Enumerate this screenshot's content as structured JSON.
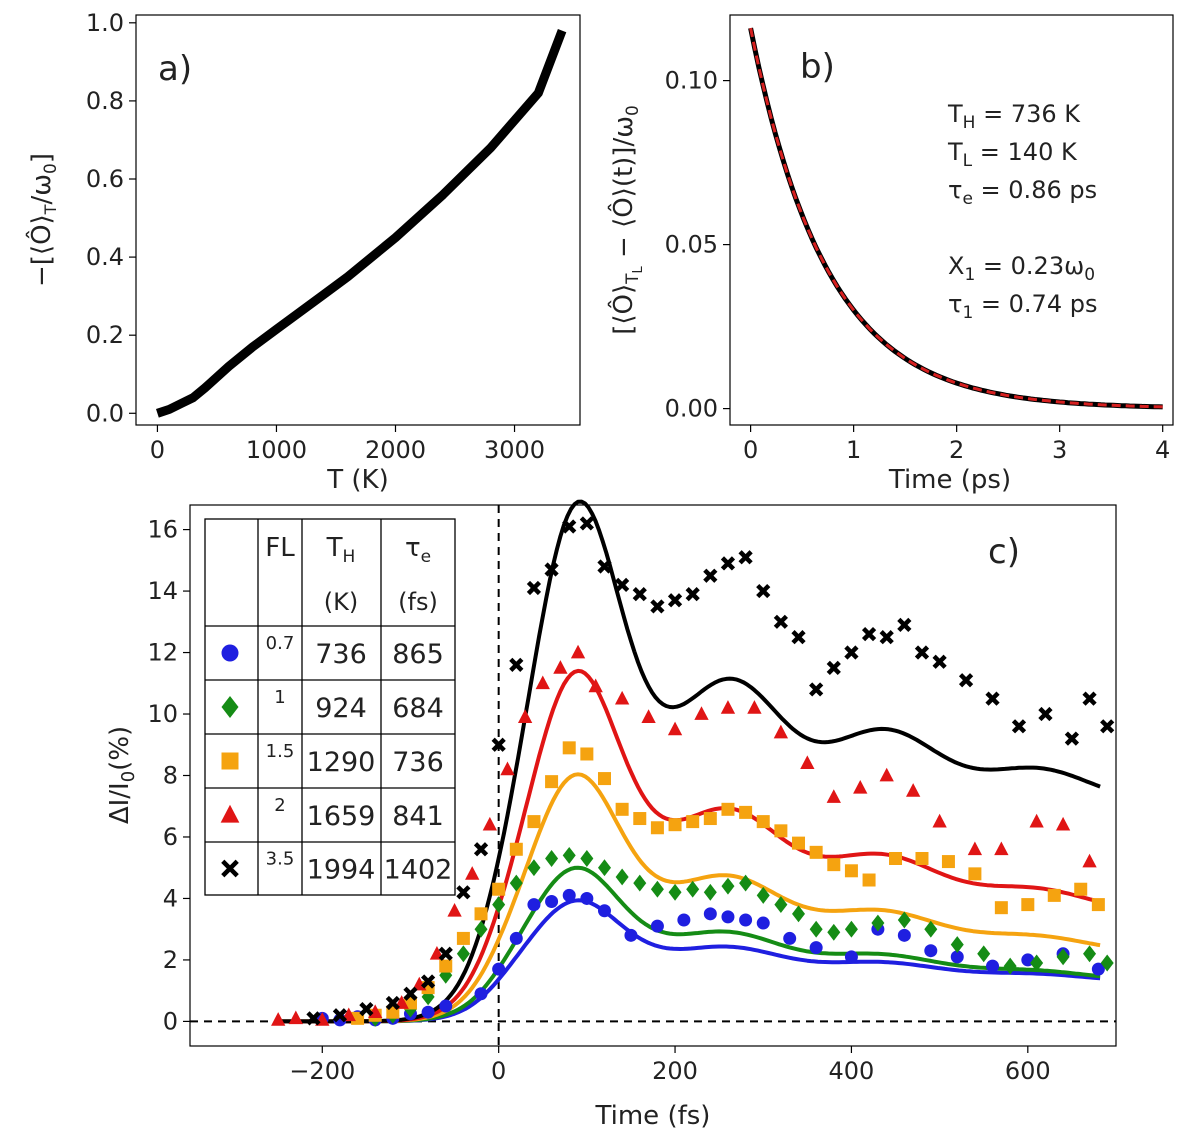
{
  "chart_data": [
    {
      "panel": "a",
      "type": "line",
      "panel_label": "a)",
      "xlabel": "T (K)",
      "ylabel": "−[⟨Ô⟩T/ω0]",
      "ylabel_main": "−[⟨Ô⟩",
      "ylabel_sub": "T",
      "ylabel_tail": "/ω",
      "ylabel_sub2": "0",
      "ylabel_end": "]",
      "xlim": [
        -180,
        3550
      ],
      "ylim": [
        -0.03,
        1.02
      ],
      "xticks": [
        0,
        1000,
        2000,
        3000
      ],
      "xtick_labels": [
        "0",
        "1000",
        "2000",
        "3000"
      ],
      "yticks": [
        0.0,
        0.2,
        0.4,
        0.6,
        0.8,
        1.0
      ],
      "ytick_labels": [
        "0.0",
        "0.2",
        "0.4",
        "0.6",
        "0.8",
        "1.0"
      ],
      "series": [
        {
          "name": "curve",
          "color": "#000000",
          "x": [
            0,
            100,
            200,
            300,
            400,
            600,
            800,
            1000,
            1200,
            1400,
            1600,
            1800,
            2000,
            2200,
            2400,
            2600,
            2800,
            3000,
            3200,
            3400
          ],
          "y": [
            0.0,
            0.01,
            0.025,
            0.04,
            0.065,
            0.12,
            0.17,
            0.215,
            0.26,
            0.305,
            0.35,
            0.4,
            0.45,
            0.505,
            0.56,
            0.62,
            0.68,
            0.75,
            0.82,
            0.98
          ]
        }
      ]
    },
    {
      "panel": "b",
      "type": "line",
      "panel_label": "b)",
      "xlabel": "Time (ps)",
      "ylabel": "[⟨Ô⟩TL − ⟨Ô⟩(t)]/ω0",
      "ylabel_a": "[⟨Ô⟩",
      "ylabel_sub": "T",
      "ylabel_subsub": "L",
      "ylabel_b": " − ⟨Ô⟩(t)]/ω",
      "ylabel_sub2": "0",
      "xlim": [
        -0.2,
        4.1
      ],
      "ylim": [
        -0.005,
        0.12
      ],
      "xticks": [
        0,
        1,
        2,
        3,
        4
      ],
      "xtick_labels": [
        "0",
        "1",
        "2",
        "3",
        "4"
      ],
      "yticks": [
        0.0,
        0.05,
        0.1
      ],
      "ytick_labels": [
        "0.00",
        "0.05",
        "0.10"
      ],
      "decay": {
        "amplitude": 0.116,
        "tau_ps": 0.74
      },
      "series": [
        {
          "name": "simulation",
          "color": "#000000",
          "style": "solid"
        },
        {
          "name": "fit",
          "color": "#d62020",
          "style": "dashed"
        }
      ],
      "annotations": [
        {
          "main": "T",
          "sub": "H",
          "rest": " = 736 K"
        },
        {
          "main": "T",
          "sub": "L",
          "rest": " = 140 K"
        },
        {
          "main": "τ",
          "sub": "e",
          "rest": " = 0.86 ps"
        },
        {
          "main": "X",
          "sub": "1",
          "rest": " = 0.23ω",
          "sub2": "0"
        },
        {
          "main": "τ",
          "sub": "1",
          "rest": " = 0.74 ps"
        }
      ]
    },
    {
      "panel": "c",
      "type": "scatter",
      "panel_label": "c)",
      "xlabel": "Time (fs)",
      "ylabel": "ΔI/I0(%)",
      "ylabel_a": "ΔI/I",
      "ylabel_sub": "0",
      "ylabel_b": "(%)",
      "xlim": [
        -350,
        700
      ],
      "ylim": [
        -0.8,
        16.8
      ],
      "xticks": [
        -200,
        0,
        200,
        400,
        600
      ],
      "xtick_labels": [
        "−200",
        "0",
        "200",
        "400",
        "600"
      ],
      "yticks": [
        0,
        2,
        4,
        6,
        8,
        10,
        12,
        14,
        16
      ],
      "ytick_labels": [
        "0",
        "2",
        "4",
        "6",
        "8",
        "10",
        "12",
        "14",
        "16"
      ],
      "reference_lines": [
        {
          "axis": "y",
          "value": 0,
          "style": "dashed"
        },
        {
          "axis": "x",
          "value": 0,
          "style": "dashed"
        }
      ],
      "legend_table": {
        "headers": [
          {
            "main": "FL",
            "sub": "",
            "unit": ""
          },
          {
            "main": "T",
            "sub": "H",
            "unit": "(K)"
          },
          {
            "main": "τ",
            "sub": "e",
            "unit": "(fs)"
          }
        ],
        "rows": [
          {
            "fl": "0.7",
            "th": "736",
            "te": "865"
          },
          {
            "fl": "1",
            "th": "924",
            "te": "684"
          },
          {
            "fl": "1.5",
            "th": "1290",
            "te": "736"
          },
          {
            "fl": "2",
            "th": "1659",
            "te": "841"
          },
          {
            "fl": "3.5",
            "th": "1994",
            "te": "1402"
          }
        ]
      },
      "series": [
        {
          "name": "FL 0.7",
          "marker": "circle",
          "color": "#1f1fe0",
          "fit": {
            "amplitude": 3.1,
            "tau_fs": 865,
            "osc": 0.45
          },
          "x": [
            -200,
            -180,
            -160,
            -140,
            -120,
            -100,
            -80,
            -60,
            -20,
            0,
            20,
            40,
            60,
            80,
            100,
            120,
            150,
            180,
            210,
            240,
            260,
            280,
            300,
            330,
            360,
            400,
            430,
            460,
            490,
            520,
            560,
            600,
            640,
            680
          ],
          "y": [
            0.1,
            0.05,
            0.15,
            0.05,
            0.1,
            0.25,
            0.3,
            0.5,
            0.9,
            1.7,
            2.7,
            3.8,
            3.9,
            4.1,
            4.0,
            3.6,
            2.8,
            3.1,
            3.3,
            3.5,
            3.4,
            3.3,
            3.2,
            2.7,
            2.4,
            2.1,
            3.0,
            2.8,
            2.3,
            2.1,
            1.8,
            2.0,
            2.2,
            1.7
          ]
        },
        {
          "name": "FL 1",
          "marker": "diamond",
          "color": "#158c15",
          "fit": {
            "amplitude": 4.0,
            "tau_fs": 684,
            "osc": 0.5
          },
          "x": [
            -140,
            -120,
            -100,
            -80,
            -60,
            -40,
            -20,
            0,
            20,
            40,
            60,
            80,
            100,
            120,
            140,
            160,
            180,
            200,
            220,
            240,
            260,
            280,
            300,
            320,
            340,
            360,
            380,
            400,
            430,
            460,
            490,
            520,
            550,
            580,
            610,
            640,
            670,
            690
          ],
          "y": [
            0.1,
            0.2,
            0.4,
            0.8,
            1.5,
            2.2,
            3.0,
            3.8,
            4.5,
            5.0,
            5.3,
            5.4,
            5.3,
            5.0,
            4.7,
            4.5,
            4.3,
            4.2,
            4.3,
            4.2,
            4.4,
            4.5,
            4.1,
            3.8,
            3.5,
            3.0,
            2.9,
            3.0,
            3.2,
            3.3,
            3.0,
            2.5,
            2.2,
            1.8,
            1.9,
            2.1,
            2.2,
            1.9
          ]
        },
        {
          "name": "FL 1.5",
          "marker": "square",
          "color": "#f5a310",
          "fit": {
            "amplitude": 6.3,
            "tau_fs": 736,
            "osc": 0.55
          },
          "x": [
            -160,
            -140,
            -120,
            -100,
            -80,
            -60,
            -40,
            -20,
            0,
            20,
            40,
            60,
            80,
            100,
            120,
            140,
            160,
            180,
            200,
            220,
            240,
            260,
            280,
            300,
            320,
            340,
            360,
            380,
            400,
            420,
            450,
            480,
            510,
            540,
            570,
            600,
            630,
            660,
            680
          ],
          "y": [
            0.1,
            0.2,
            0.3,
            0.6,
            1.1,
            1.8,
            2.7,
            3.5,
            4.3,
            5.6,
            6.5,
            7.8,
            8.9,
            8.7,
            7.9,
            6.9,
            6.6,
            6.3,
            6.4,
            6.5,
            6.6,
            6.9,
            6.8,
            6.5,
            6.2,
            5.8,
            5.5,
            5.1,
            4.9,
            4.6,
            5.3,
            5.3,
            5.2,
            4.8,
            3.7,
            3.8,
            4.1,
            4.3,
            3.8
          ]
        },
        {
          "name": "FL 2",
          "marker": "triangle",
          "color": "#e01515",
          "fit": {
            "amplitude": 8.8,
            "tau_fs": 841,
            "osc": 0.55
          },
          "x": [
            -250,
            -230,
            -200,
            -170,
            -140,
            -110,
            -90,
            -70,
            -50,
            -30,
            -10,
            10,
            30,
            50,
            70,
            90,
            110,
            140,
            170,
            200,
            230,
            260,
            290,
            320,
            350,
            380,
            410,
            440,
            470,
            500,
            540,
            570,
            610,
            640,
            670
          ],
          "y": [
            0.05,
            0.1,
            0.05,
            0.2,
            0.3,
            0.6,
            1.2,
            2.2,
            3.6,
            4.8,
            6.4,
            8.2,
            9.9,
            11.0,
            11.5,
            12.0,
            10.9,
            10.5,
            9.9,
            9.5,
            10.0,
            10.2,
            10.2,
            9.4,
            8.4,
            7.3,
            7.6,
            8.0,
            7.5,
            6.5,
            5.6,
            5.6,
            6.5,
            6.4,
            5.2
          ]
        },
        {
          "name": "FL 3.5",
          "marker": "x",
          "color": "#000000",
          "fit": {
            "amplitude": 12.5,
            "tau_fs": 1402,
            "osc": 0.55
          },
          "x": [
            -210,
            -180,
            -150,
            -120,
            -100,
            -80,
            -60,
            -40,
            -20,
            0,
            20,
            40,
            60,
            80,
            100,
            120,
            140,
            160,
            180,
            200,
            220,
            240,
            260,
            280,
            300,
            320,
            340,
            360,
            380,
            400,
            420,
            440,
            460,
            480,
            500,
            530,
            560,
            590,
            620,
            650,
            670,
            690
          ],
          "y": [
            0.1,
            0.2,
            0.4,
            0.6,
            0.9,
            1.3,
            2.2,
            4.2,
            5.6,
            9.0,
            11.6,
            14.1,
            14.7,
            16.1,
            16.2,
            14.8,
            14.2,
            13.9,
            13.5,
            13.7,
            13.9,
            14.5,
            14.9,
            15.1,
            14.0,
            13.0,
            12.5,
            10.8,
            11.5,
            12.0,
            12.6,
            12.5,
            12.9,
            12.0,
            11.7,
            11.1,
            10.5,
            9.6,
            10.0,
            9.2,
            10.5,
            9.6
          ]
        }
      ]
    }
  ]
}
